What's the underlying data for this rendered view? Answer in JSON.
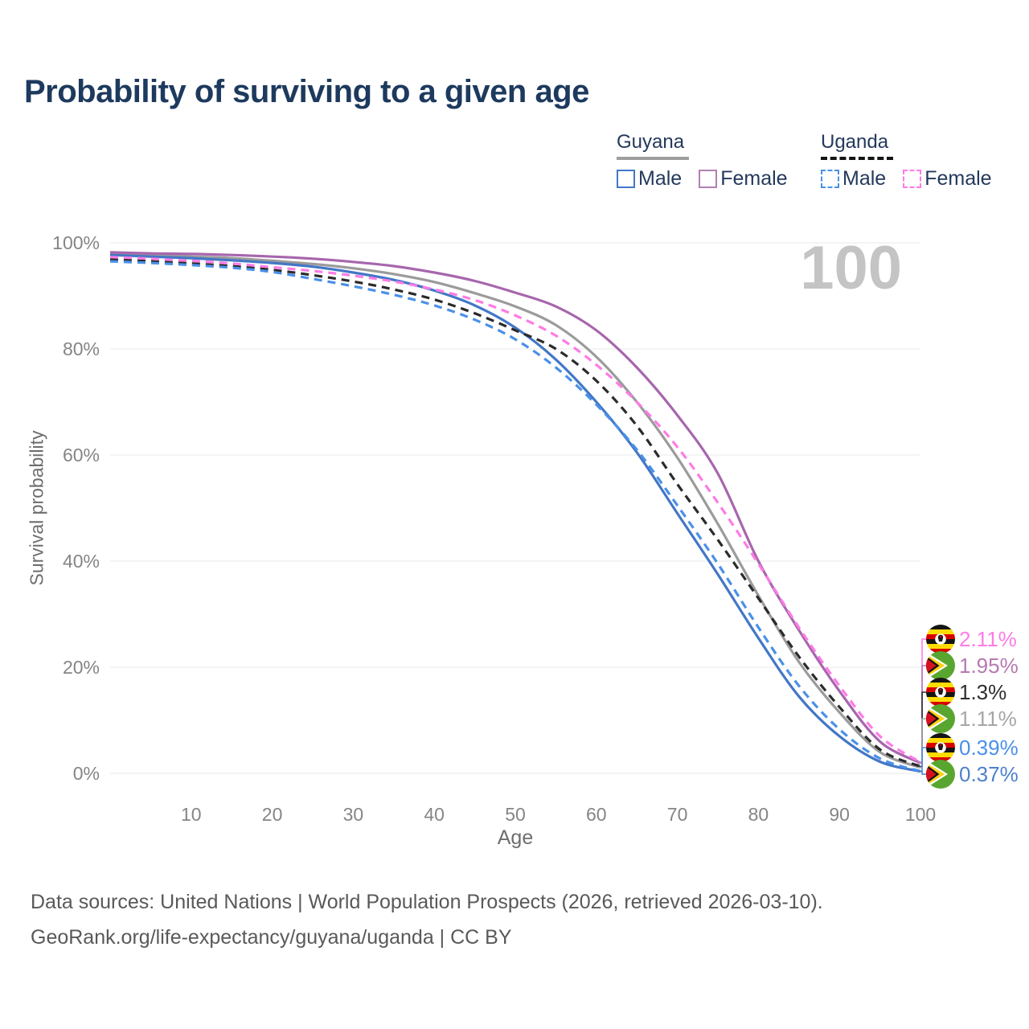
{
  "title": "Probability of surviving to a given age",
  "watermark_age": "100",
  "legend": {
    "groups": [
      {
        "label": "Guyana",
        "line_style": "solid",
        "underline_color": "#9e9e9e",
        "items": [
          {
            "label": "Male",
            "color": "#4377c6"
          },
          {
            "label": "Female",
            "color": "#b27fb4"
          }
        ]
      },
      {
        "label": "Uganda",
        "line_style": "dashed",
        "underline_color": "#141414",
        "items": [
          {
            "label": "Male",
            "color": "#4a90e8"
          },
          {
            "label": "Female",
            "color": "#fe7be6"
          }
        ]
      }
    ]
  },
  "chart_data": {
    "type": "line",
    "title": "Probability of surviving to a given age",
    "xlabel": "Age",
    "ylabel": "Survival probability",
    "xlim": [
      0,
      100
    ],
    "ylim": [
      0,
      100
    ],
    "grid": "horizontal",
    "legend_position": "top-right",
    "x_ticks": [
      10,
      20,
      30,
      40,
      50,
      60,
      70,
      80,
      90,
      100
    ],
    "y_ticks": [
      {
        "value": 0,
        "label": "0%"
      },
      {
        "value": 20,
        "label": "20%"
      },
      {
        "value": 40,
        "label": "40%"
      },
      {
        "value": 60,
        "label": "60%"
      },
      {
        "value": 80,
        "label": "80%"
      },
      {
        "value": 100,
        "label": "100%"
      }
    ],
    "ages": [
      0,
      5,
      10,
      15,
      20,
      25,
      30,
      35,
      40,
      45,
      50,
      55,
      60,
      65,
      70,
      75,
      80,
      85,
      90,
      95,
      100
    ],
    "series": [
      {
        "id": "guyana-total",
        "name": "Guyana",
        "country": "Guyana",
        "sex": "Both",
        "color": "#9b9b9b",
        "dashed": false,
        "flag": "guyana",
        "end_label": "1.11%",
        "end_label_color": "#a6a6a6",
        "values": [
          97.9,
          97.7,
          97.4,
          97.1,
          96.6,
          96.0,
          95.2,
          94.1,
          92.6,
          90.5,
          88.0,
          84.5,
          78.5,
          70.0,
          59.5,
          47.0,
          33.5,
          21.0,
          11.5,
          4.0,
          1.11
        ]
      },
      {
        "id": "guyana-male",
        "name": "Guyana Male",
        "country": "Guyana",
        "sex": "Male",
        "color": "#4377c6",
        "dashed": false,
        "flag": "guyana",
        "end_label": "0.37%",
        "end_label_color": "#4e80cc",
        "values": [
          97.7,
          97.4,
          97.1,
          96.7,
          96.2,
          95.5,
          94.4,
          93.0,
          91.0,
          88.2,
          84.0,
          78.0,
          70.0,
          60.5,
          49.0,
          37.5,
          25.5,
          14.5,
          7.0,
          2.2,
          0.37
        ]
      },
      {
        "id": "guyana-female",
        "name": "Guyana Female",
        "country": "Guyana",
        "sex": "Female",
        "color": "#a766ad",
        "dashed": false,
        "flag": "guyana",
        "end_label": "1.95%",
        "end_label_color": "#b679b1",
        "values": [
          98.2,
          98.0,
          97.9,
          97.7,
          97.4,
          97.0,
          96.4,
          95.6,
          94.4,
          92.8,
          90.6,
          88.0,
          83.5,
          76.5,
          67.5,
          56.5,
          40.0,
          27.0,
          15.5,
          6.0,
          1.95
        ]
      },
      {
        "id": "uganda-total",
        "name": "Uganda",
        "country": "Uganda",
        "sex": "Both",
        "color": "#2b2b2b",
        "dashed": true,
        "flag": "uganda",
        "end_label": "1.3%",
        "end_label_color": "#2e2e2e",
        "values": [
          96.9,
          96.5,
          96.1,
          95.6,
          94.9,
          93.9,
          92.7,
          91.2,
          89.3,
          86.7,
          83.5,
          80.0,
          74.0,
          65.5,
          54.5,
          44.0,
          33.0,
          22.0,
          12.5,
          4.5,
          1.3
        ]
      },
      {
        "id": "uganda-male",
        "name": "Uganda Male",
        "country": "Uganda",
        "sex": "Male",
        "color": "#4a90e8",
        "dashed": true,
        "flag": "uganda",
        "end_label": "0.39%",
        "end_label_color": "#4a90e8",
        "values": [
          96.5,
          96.2,
          95.8,
          95.3,
          94.5,
          93.2,
          91.8,
          90.2,
          88.2,
          85.5,
          81.8,
          76.5,
          69.5,
          61.0,
          50.5,
          39.5,
          27.5,
          16.5,
          8.3,
          2.8,
          0.39
        ]
      },
      {
        "id": "uganda-female",
        "name": "Uganda Female",
        "country": "Uganda",
        "sex": "Female",
        "color": "#fe7be6",
        "dashed": true,
        "flag": "uganda",
        "end_label": "2.11%",
        "end_label_color": "#fe7be6",
        "values": [
          97.3,
          97.0,
          96.6,
          96.1,
          95.4,
          94.7,
          93.8,
          92.7,
          91.2,
          89.2,
          86.3,
          82.5,
          77.0,
          70.0,
          61.5,
          51.0,
          39.5,
          27.5,
          16.5,
          7.0,
          2.11
        ]
      }
    ]
  },
  "footer": {
    "line1": "Data sources: United Nations | World Population Prospects (2026, retrieved 2026-03-10).",
    "line2": "GeoRank.org/life-expectancy/guyana/uganda | CC BY"
  }
}
